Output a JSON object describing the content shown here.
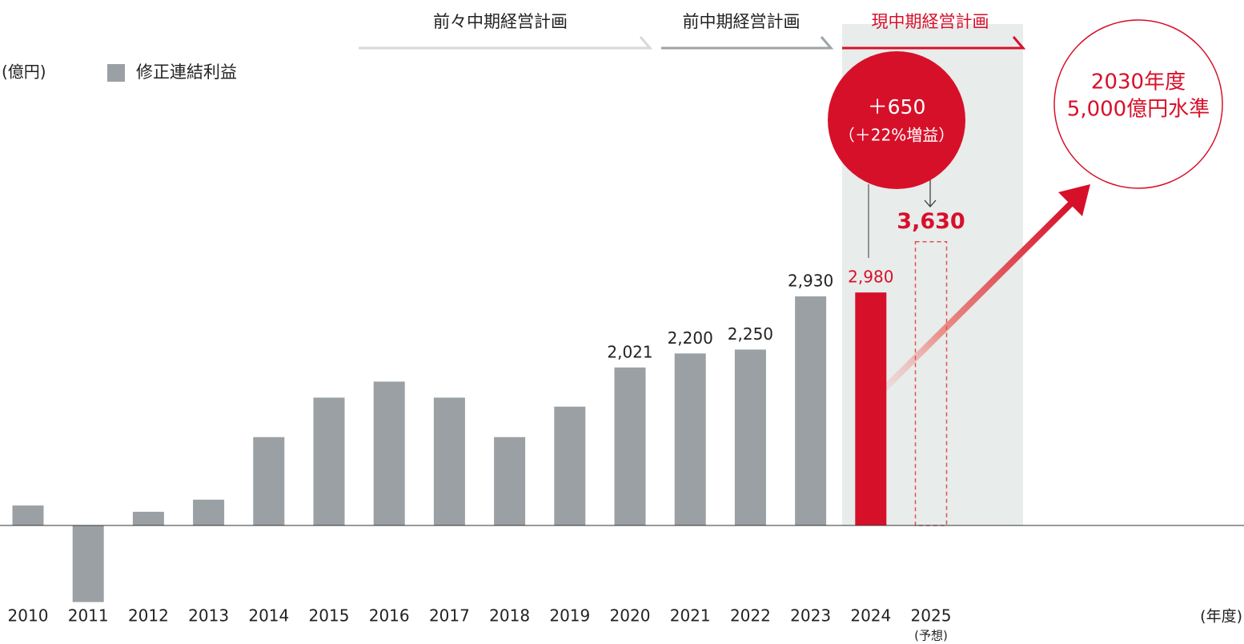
{
  "chart_data": {
    "type": "bar",
    "unit_label": "(億円)",
    "x_unit_label": "(年度)",
    "legend_label": "修正連結利益",
    "categories": [
      "2010",
      "2011",
      "2012",
      "2013",
      "2014",
      "2015",
      "2016",
      "2017",
      "2018",
      "2019",
      "2020",
      "2021",
      "2022",
      "2023",
      "2024",
      "2025"
    ],
    "category_notes": [
      null,
      null,
      null,
      null,
      null,
      null,
      null,
      null,
      null,
      null,
      null,
      null,
      null,
      null,
      null,
      "(予想)"
    ],
    "values": [
      255,
      -980,
      175,
      330,
      1130,
      1635,
      1840,
      1635,
      1130,
      1520,
      2021,
      2200,
      2250,
      2930,
      2980,
      3630
    ],
    "value_labels": [
      null,
      null,
      null,
      null,
      null,
      null,
      null,
      null,
      null,
      null,
      "2,021",
      "2,200",
      "2,250",
      "2,930",
      "2,980",
      "3,630"
    ],
    "colors": [
      "#9aa0a4",
      "#9aa0a4",
      "#9aa0a4",
      "#9aa0a4",
      "#9aa0a4",
      "#9aa0a4",
      "#9aa0a4",
      "#9aa0a4",
      "#9aa0a4",
      "#9aa0a4",
      "#9aa0a4",
      "#9aa0a4",
      "#9aa0a4",
      "#9aa0a4",
      "#d7102a",
      "#e0524f"
    ],
    "styles": [
      "solid",
      "solid",
      "solid",
      "solid",
      "solid",
      "solid",
      "solid",
      "solid",
      "solid",
      "solid",
      "solid",
      "solid",
      "solid",
      "solid",
      "solid",
      "dashed"
    ],
    "ylim": [
      -1000,
      6000
    ],
    "plans": [
      "前々中期経営計画",
      "前中期経営計画",
      "現中期経営計画"
    ],
    "increase_callout": [
      "＋650",
      "（＋22%増益）"
    ],
    "target_callout": [
      "2030年度",
      "5,000億円水準"
    ]
  }
}
